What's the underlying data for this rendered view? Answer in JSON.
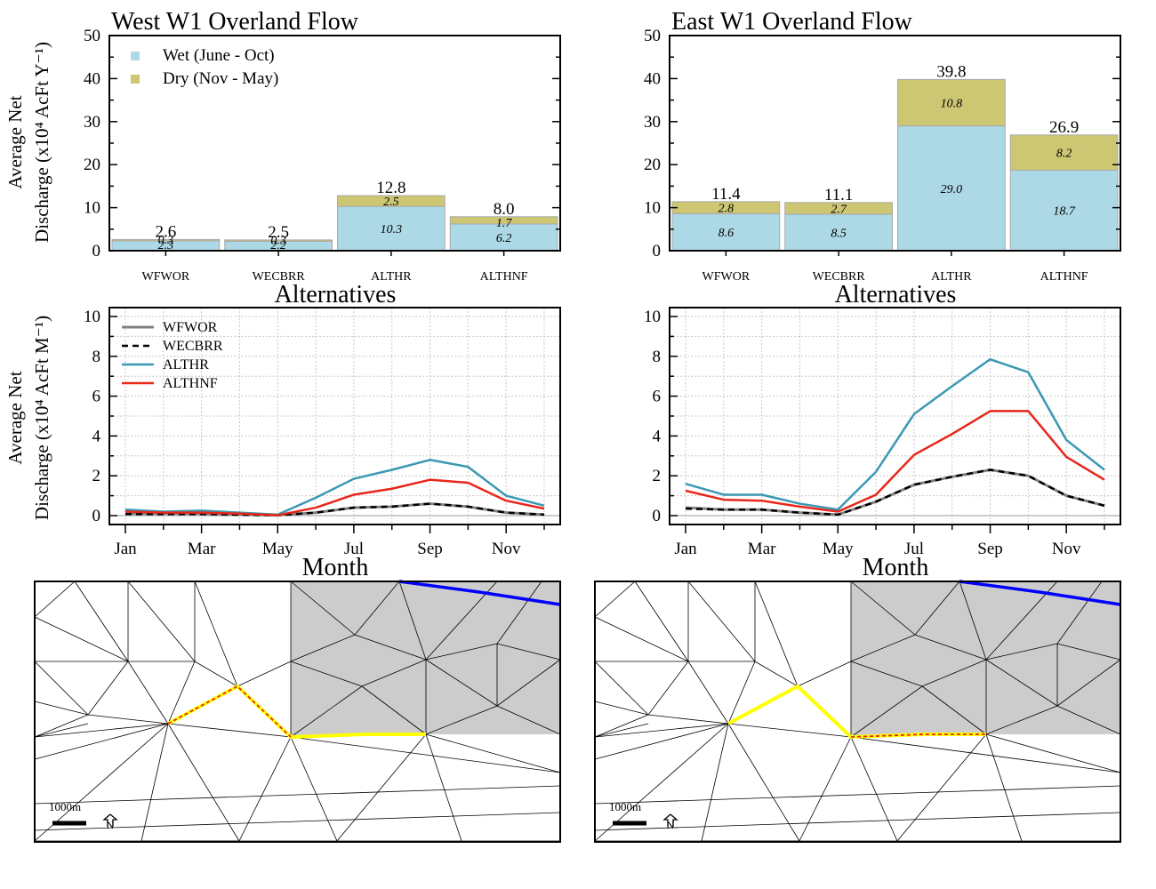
{
  "colors": {
    "wet": "#add8e6",
    "dry": "#cdc673",
    "wfwor": "#808080",
    "wecbrr": "#000000",
    "althr": "#3b98b3",
    "althnf": "#e8261a",
    "channel": "#ffff00",
    "river": "#0000ff",
    "shaded": "#cccccc",
    "grid": "#c8c8c8"
  },
  "common": {
    "bar_ylabel_line1": "Average Net",
    "bar_ylabel_line2": "Discharge (x10⁴ AcFt Y⁻¹)",
    "line_ylabel_line1": "Average Net",
    "line_ylabel_line2": "Discharge (x10⁴ AcFt M⁻¹)",
    "bar_xlabel": "Alternatives",
    "line_xlabel": "Month",
    "scale_label": "1000m",
    "north_label": "N"
  },
  "chart_data": [
    {
      "type": "bar",
      "title": "West W1 Overland Flow",
      "categories": [
        "WFWOR",
        "WECBRR",
        "ALTHR",
        "ALTHNF"
      ],
      "series": [
        {
          "name": "Wet (June - Oct)",
          "values": [
            2.3,
            2.2,
            10.3,
            6.2
          ],
          "labels": [
            "2.3",
            "2.2",
            "10.3",
            "6.2"
          ]
        },
        {
          "name": "Dry (Nov - May)",
          "values": [
            0.3,
            0.3,
            2.5,
            1.7
          ],
          "labels": [
            "0.3",
            "0.3",
            "2.5",
            "1.7"
          ]
        }
      ],
      "totals": [
        "2.6",
        "2.5",
        "12.8",
        "8.0"
      ],
      "ylim": [
        0,
        50
      ],
      "yticks": [
        0,
        10,
        20,
        30,
        40,
        50
      ],
      "legend": "top-left"
    },
    {
      "type": "bar",
      "title": "East W1 Overland Flow",
      "categories": [
        "WFWOR",
        "WECBRR",
        "ALTHR",
        "ALTHNF"
      ],
      "series": [
        {
          "name": "Wet (June - Oct)",
          "values": [
            8.6,
            8.5,
            29.0,
            18.7
          ],
          "labels": [
            "8.6",
            "8.5",
            "29.0",
            "18.7"
          ]
        },
        {
          "name": "Dry (Nov - May)",
          "values": [
            2.8,
            2.7,
            10.8,
            8.2
          ],
          "labels": [
            "2.8",
            "2.7",
            "10.8",
            "8.2"
          ]
        }
      ],
      "totals": [
        "11.4",
        "11.1",
        "39.8",
        "26.9"
      ],
      "ylim": [
        0,
        50
      ],
      "yticks": [
        0,
        10,
        20,
        30,
        40,
        50
      ]
    },
    {
      "type": "line",
      "x": [
        "Jan",
        "Feb",
        "Mar",
        "Apr",
        "May",
        "Jun",
        "Jul",
        "Aug",
        "Sep",
        "Oct",
        "Nov",
        "Dec"
      ],
      "xticklabels": [
        "Jan",
        "Mar",
        "May",
        "Jul",
        "Sep",
        "Nov"
      ],
      "series": [
        {
          "name": "WFWOR",
          "values": [
            0.1,
            0.1,
            0.1,
            0.05,
            0.02,
            0.15,
            0.4,
            0.45,
            0.6,
            0.45,
            0.15,
            0.05
          ]
        },
        {
          "name": "WECBRR",
          "values": [
            0.08,
            0.08,
            0.08,
            0.04,
            0.02,
            0.15,
            0.4,
            0.45,
            0.6,
            0.45,
            0.15,
            0.05
          ]
        },
        {
          "name": "ALTHR",
          "values": [
            0.3,
            0.2,
            0.25,
            0.15,
            0.05,
            0.9,
            1.85,
            2.3,
            2.8,
            2.45,
            1.0,
            0.5
          ]
        },
        {
          "name": "ALTHNF",
          "values": [
            0.2,
            0.15,
            0.15,
            0.1,
            0.02,
            0.4,
            1.05,
            1.35,
            1.8,
            1.65,
            0.75,
            0.35
          ]
        }
      ],
      "ylim": [
        0,
        10
      ],
      "yticks": [
        0,
        2,
        4,
        6,
        8,
        10
      ],
      "grid": true,
      "legend": "top-left"
    },
    {
      "type": "line",
      "x": [
        "Jan",
        "Feb",
        "Mar",
        "Apr",
        "May",
        "Jun",
        "Jul",
        "Aug",
        "Sep",
        "Oct",
        "Nov",
        "Dec"
      ],
      "xticklabels": [
        "Jan",
        "Mar",
        "May",
        "Jul",
        "Sep",
        "Nov"
      ],
      "series": [
        {
          "name": "WFWOR",
          "values": [
            0.4,
            0.3,
            0.3,
            0.15,
            0.05,
            0.7,
            1.55,
            1.95,
            2.3,
            2.0,
            1.0,
            0.5
          ]
        },
        {
          "name": "WECBRR",
          "values": [
            0.35,
            0.3,
            0.3,
            0.15,
            0.05,
            0.7,
            1.55,
            1.95,
            2.3,
            2.0,
            1.0,
            0.5
          ]
        },
        {
          "name": "ALTHR",
          "values": [
            1.6,
            1.05,
            1.05,
            0.6,
            0.3,
            2.2,
            5.1,
            6.5,
            7.85,
            7.2,
            3.8,
            2.3
          ]
        },
        {
          "name": "ALTHNF",
          "values": [
            1.25,
            0.8,
            0.75,
            0.45,
            0.2,
            1.05,
            3.05,
            4.1,
            5.25,
            5.25,
            2.95,
            1.8
          ]
        }
      ],
      "ylim": [
        0,
        10
      ],
      "yticks": [
        0,
        2,
        4,
        6,
        8,
        10
      ],
      "grid": true
    }
  ]
}
